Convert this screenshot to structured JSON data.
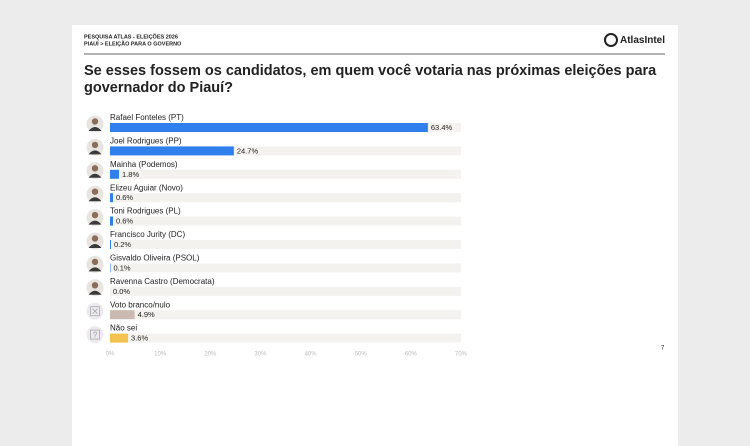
{
  "chart_data": {
    "type": "bar",
    "header": [
      "PESQUISA ATLAS - ELEIÇÕES 2026",
      "PIAUÍ > ELEIÇÃO PARA O GOVERNO"
    ],
    "brand": "AtlasIntel",
    "title": [
      "Se esses fossem os candidatos, em quem você votaria nas próximas eleições para",
      "governador do Piauí?"
    ],
    "page_number": "7",
    "categories": [
      "Rafael Fonteles (PT)",
      "Joel Rodrigues (PP)",
      "Mainha (Podemos)",
      "Elizeu Aguiar (Novo)",
      "Toni Rodrigues (PL)",
      "Francisco Jurity (DC)",
      "Gisvaldo Oliveira (PSOL)",
      "Ravenna Castro (Democrata)",
      "Voto branco/nulo",
      "Não sei"
    ],
    "values": [
      63.4,
      24.7,
      1.8,
      0.6,
      0.6,
      0.2,
      0.1,
      0.0,
      4.9,
      3.6
    ],
    "value_labels": [
      "63.4%",
      "24.7%",
      "1.8%",
      "0.6%",
      "0.6%",
      "0.2%",
      "0.1%",
      "0.0%",
      "4.9%",
      "3.6%"
    ],
    "colors": [
      "#2f80ed",
      "#2f80ed",
      "#2f80ed",
      "#2f80ed",
      "#2f80ed",
      "#2f80ed",
      "#2f80ed",
      "#2f80ed",
      "#c9b9b1",
      "#f2c14e"
    ],
    "xlim": [
      0,
      70
    ],
    "xticks": [
      {
        "value": 0,
        "label": "0%"
      },
      {
        "value": 10,
        "label": "10%"
      },
      {
        "value": 20,
        "label": "20%"
      },
      {
        "value": 30,
        "label": "30%"
      },
      {
        "value": 40,
        "label": "40%"
      },
      {
        "value": 50,
        "label": "50%"
      },
      {
        "value": 60,
        "label": "60%"
      },
      {
        "value": 70,
        "label": "70%"
      }
    ],
    "grid": false
  }
}
